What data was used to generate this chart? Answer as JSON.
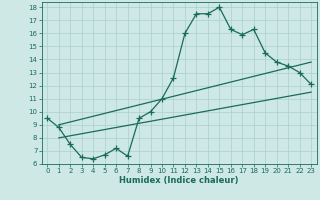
{
  "title": "",
  "xlabel": "Humidex (Indice chaleur)",
  "ylabel": "",
  "bg_color": "#cde8e5",
  "grid_color": "#aad0cc",
  "line_color": "#1a6b5a",
  "xlim": [
    -0.5,
    23.5
  ],
  "ylim": [
    6,
    18.4
  ],
  "xticks": [
    0,
    1,
    2,
    3,
    4,
    5,
    6,
    7,
    8,
    9,
    10,
    11,
    12,
    13,
    14,
    15,
    16,
    17,
    18,
    19,
    20,
    21,
    22,
    23
  ],
  "yticks": [
    6,
    7,
    8,
    9,
    10,
    11,
    12,
    13,
    14,
    15,
    16,
    17,
    18
  ],
  "main_curve_x": [
    0,
    1,
    2,
    3,
    4,
    5,
    6,
    7,
    8,
    9,
    10,
    11,
    12,
    13,
    14,
    15,
    16,
    17,
    18,
    19,
    20,
    21,
    22,
    23
  ],
  "main_curve_y": [
    9.5,
    8.8,
    7.5,
    6.5,
    6.4,
    6.7,
    7.2,
    6.6,
    9.5,
    10.0,
    11.0,
    12.6,
    16.0,
    17.5,
    17.5,
    18.0,
    16.3,
    15.9,
    16.3,
    14.5,
    13.8,
    13.5,
    13.0,
    12.1
  ],
  "line1_x": [
    1,
    23
  ],
  "line1_y": [
    8.0,
    11.5
  ],
  "line2_x": [
    1,
    23
  ],
  "line2_y": [
    9.0,
    13.8
  ],
  "marker_size": 4,
  "line_width": 0.9,
  "fontsize_ticks": 5,
  "fontsize_xlabel": 6
}
